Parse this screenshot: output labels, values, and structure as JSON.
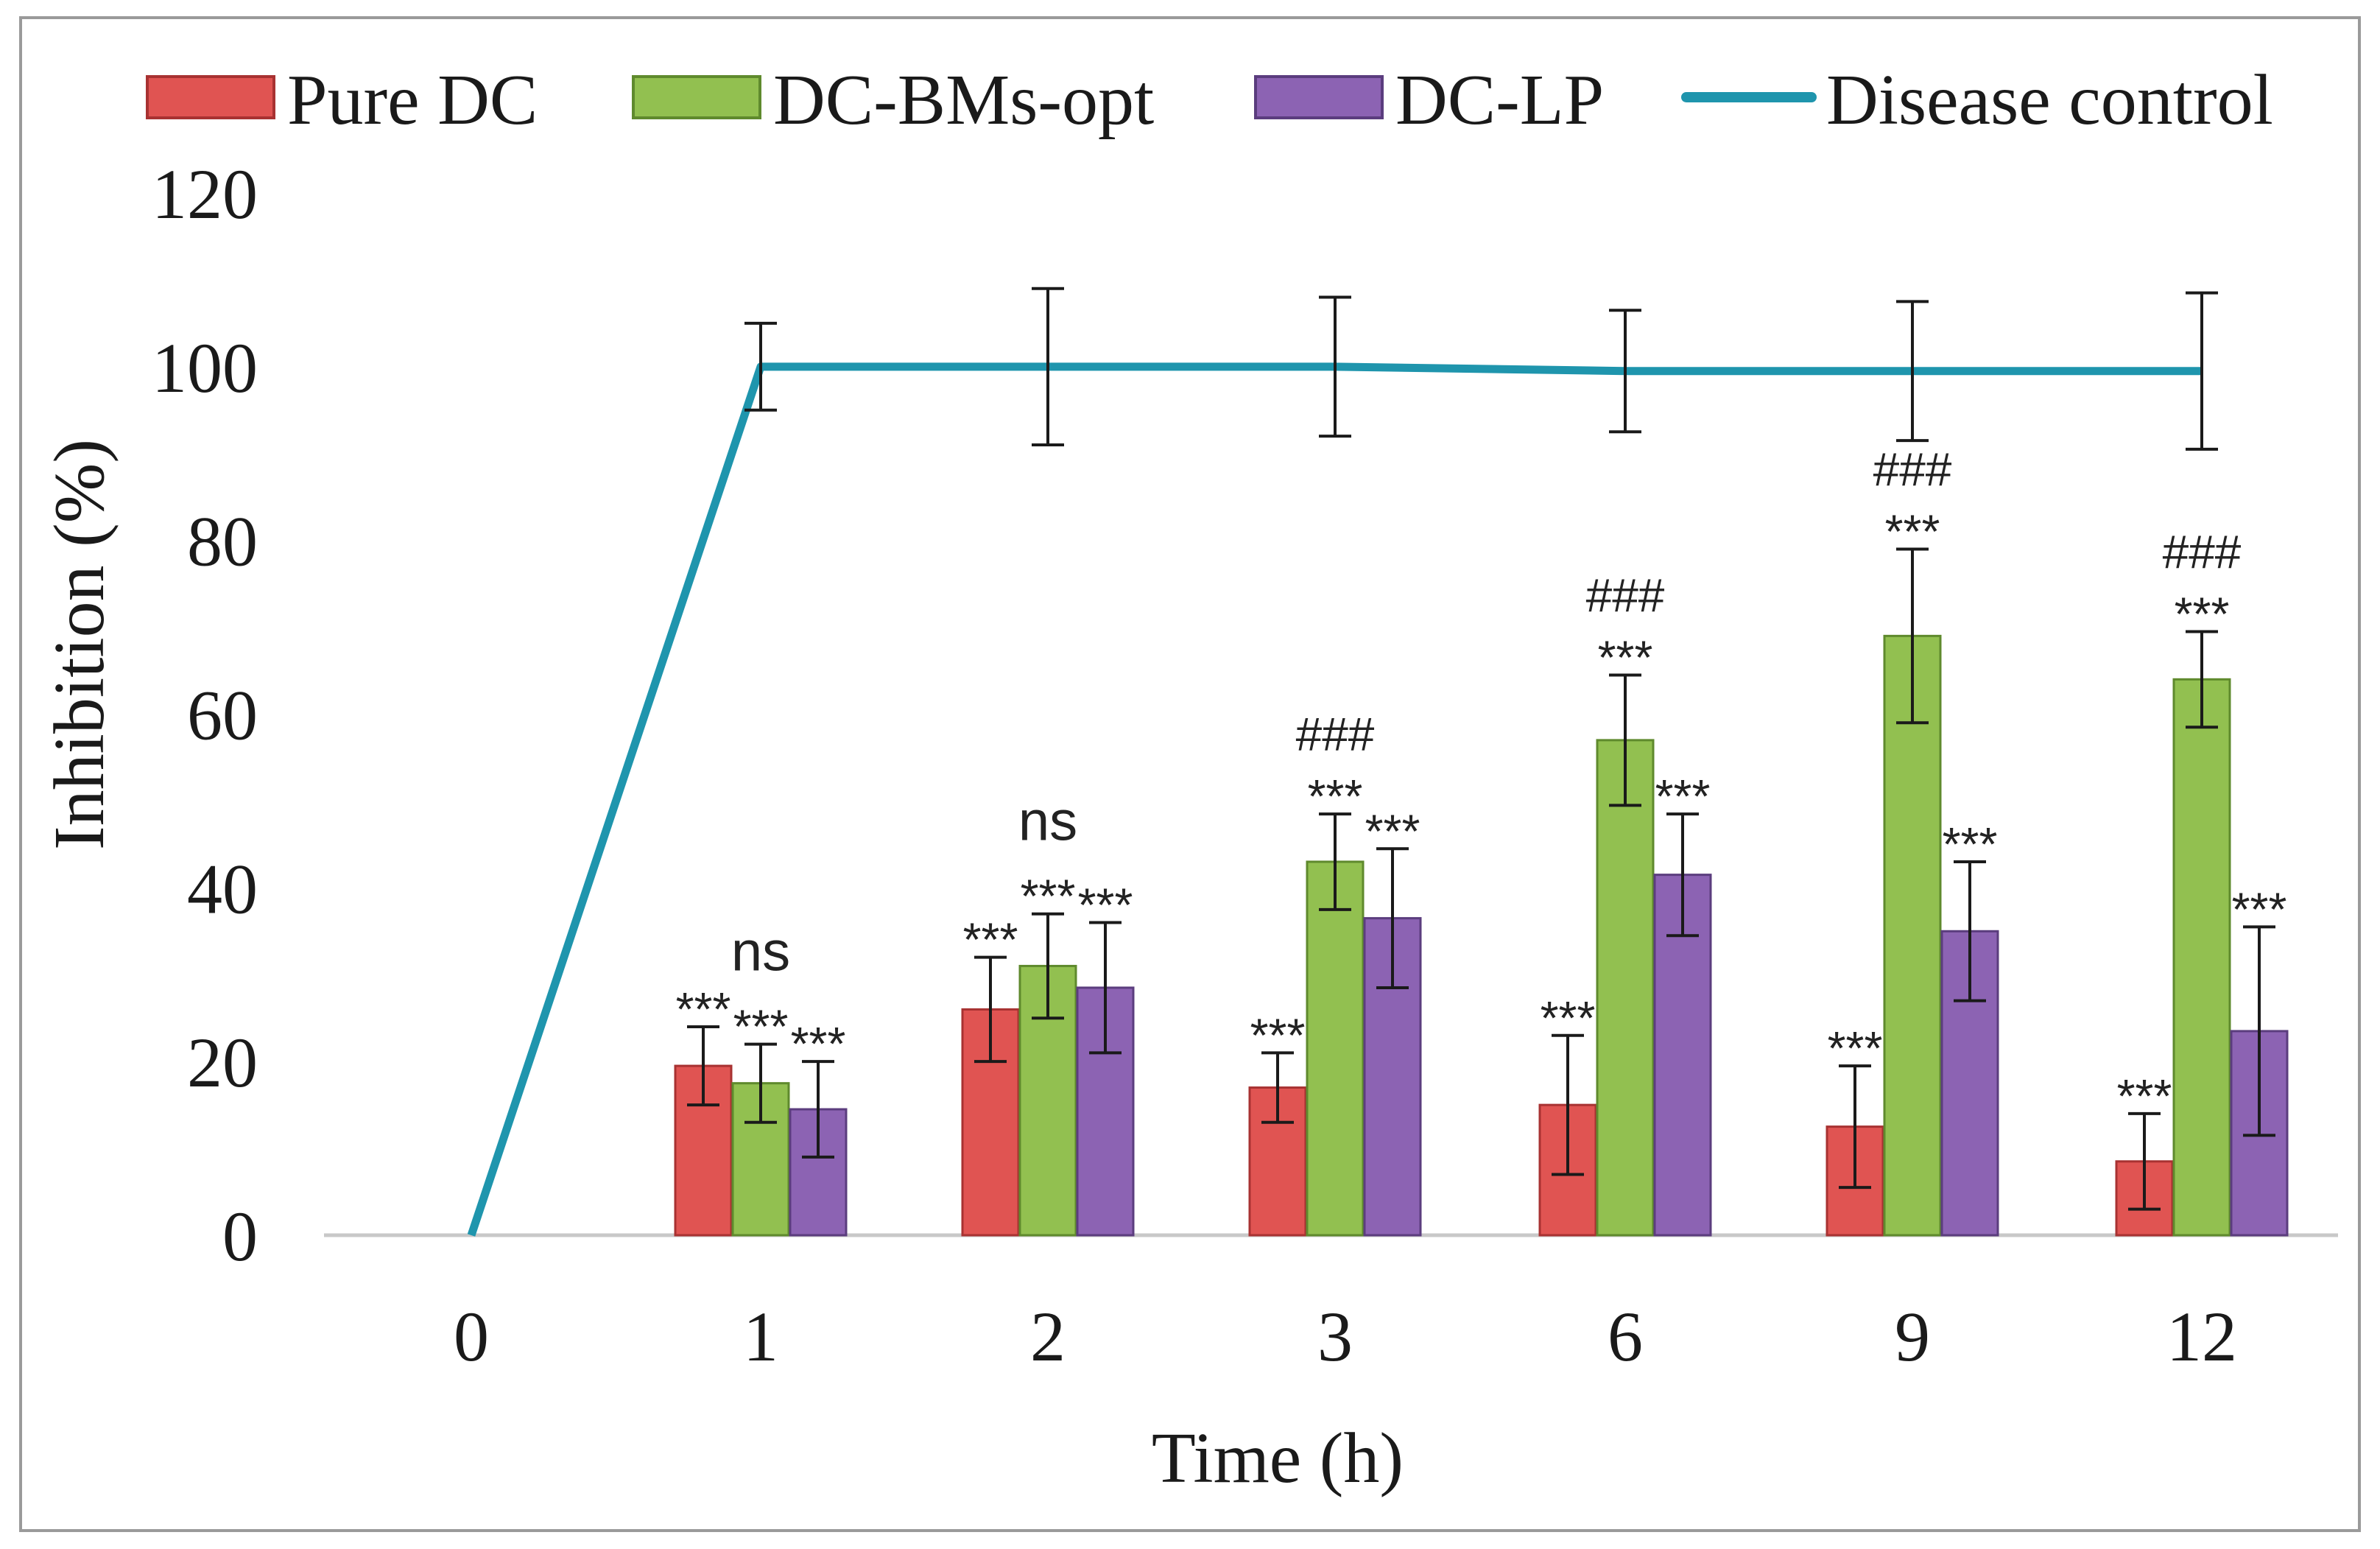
{
  "chart_data": {
    "type": "bar",
    "categories": [
      "0",
      "1",
      "2",
      "3",
      "6",
      "9",
      "12"
    ],
    "xlabel": "Time  (h)",
    "ylabel": "Inhibition  (%)",
    "ylim": [
      0,
      120
    ],
    "yticks": [
      "0",
      "20",
      "40",
      "60",
      "80",
      "100",
      "120"
    ],
    "grid": false,
    "legend_position": "top",
    "series": [
      {
        "name": "Pure DC",
        "kind": "bar",
        "color": "#e05452",
        "stroke": "#a83232",
        "values": [
          null,
          19.5,
          26,
          17,
          15,
          12.5,
          8.5
        ],
        "errors": [
          null,
          4.5,
          6,
          4,
          8,
          7,
          5.5
        ]
      },
      {
        "name": "DC-BMs-opt",
        "kind": "bar",
        "color": "#92c050",
        "stroke": "#5f8a2d",
        "values": [
          null,
          17.5,
          31,
          43,
          57,
          69,
          64
        ],
        "errors": [
          null,
          4.5,
          6,
          5.5,
          7.5,
          10,
          5.5
        ]
      },
      {
        "name": "DC-LP",
        "kind": "bar",
        "color": "#8c63b3",
        "stroke": "#5b3d7e",
        "values": [
          null,
          14.5,
          28.5,
          36.5,
          41.5,
          35,
          23.5
        ],
        "errors": [
          null,
          5.5,
          7.5,
          8,
          7,
          8,
          12
        ]
      },
      {
        "name": "Disease control",
        "kind": "line",
        "color": "#1f95ad",
        "values": [
          0,
          100,
          100,
          100,
          99.5,
          99.5,
          99.5
        ],
        "errors": [
          null,
          5,
          9,
          8,
          7,
          8,
          9
        ]
      }
    ],
    "annotations": [
      {
        "category": "1",
        "series": 0,
        "text": "***"
      },
      {
        "category": "1",
        "series": 1,
        "text": "***"
      },
      {
        "category": "1",
        "series": 1,
        "text": "ns"
      },
      {
        "category": "1",
        "series": 2,
        "text": "***"
      },
      {
        "category": "2",
        "series": 0,
        "text": "***"
      },
      {
        "category": "2",
        "series": 1,
        "text": "***"
      },
      {
        "category": "2",
        "series": 1,
        "text": "ns"
      },
      {
        "category": "2",
        "series": 2,
        "text": "***"
      },
      {
        "category": "3",
        "series": 0,
        "text": "***"
      },
      {
        "category": "3",
        "series": 1,
        "text": "***"
      },
      {
        "category": "3",
        "series": 1,
        "text": "###"
      },
      {
        "category": "3",
        "series": 2,
        "text": "***"
      },
      {
        "category": "6",
        "series": 0,
        "text": "***"
      },
      {
        "category": "6",
        "series": 1,
        "text": "***"
      },
      {
        "category": "6",
        "series": 1,
        "text": "###"
      },
      {
        "category": "6",
        "series": 2,
        "text": "***"
      },
      {
        "category": "9",
        "series": 0,
        "text": "***"
      },
      {
        "category": "9",
        "series": 1,
        "text": "***"
      },
      {
        "category": "9",
        "series": 1,
        "text": "###"
      },
      {
        "category": "9",
        "series": 2,
        "text": "***"
      },
      {
        "category": "12",
        "series": 0,
        "text": "***"
      },
      {
        "category": "12",
        "series": 1,
        "text": "***"
      },
      {
        "category": "12",
        "series": 1,
        "text": "###"
      },
      {
        "category": "12",
        "series": 2,
        "text": "***"
      }
    ]
  }
}
